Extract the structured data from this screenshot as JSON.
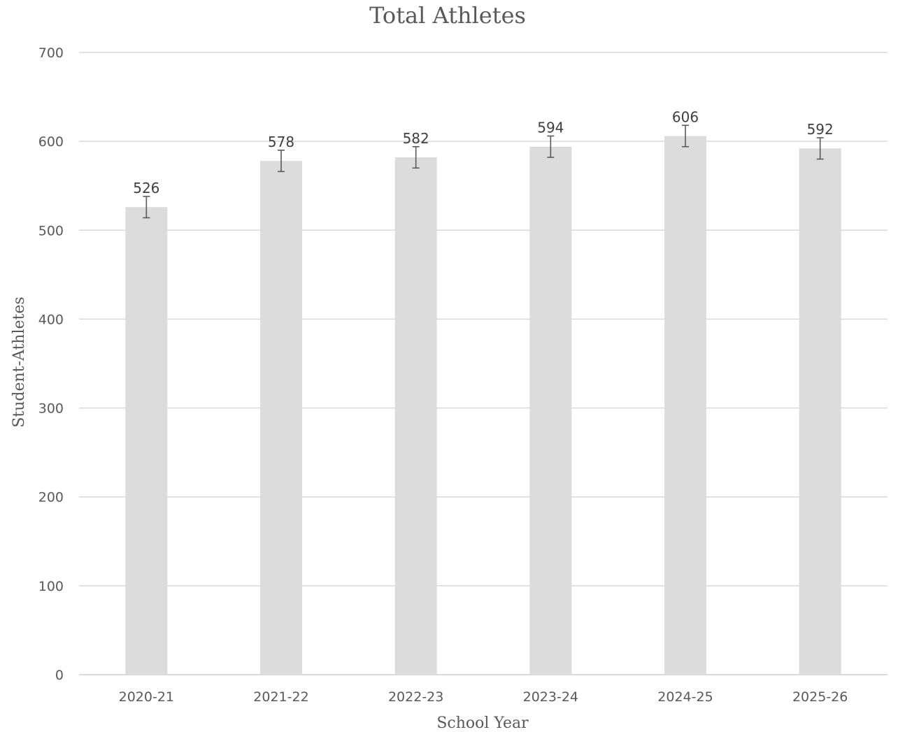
{
  "chart_data": {
    "type": "bar",
    "title": "Total Athletes",
    "xlabel": "School Year",
    "ylabel": "Student-Athletes",
    "categories": [
      "2020-21",
      "2021-22",
      "2022-23",
      "2023-24",
      "2024-25",
      "2025-26"
    ],
    "values": [
      526,
      578,
      582,
      594,
      606,
      592
    ],
    "data_labels": [
      "526",
      "578",
      "582",
      "594",
      "606",
      "592"
    ],
    "error": 12,
    "ylim": [
      0,
      700
    ],
    "yticks": [
      0,
      100,
      200,
      300,
      400,
      500,
      600,
      700
    ],
    "ytick_labels": [
      "0",
      "100",
      "200",
      "300",
      "400",
      "500",
      "600",
      "700"
    ],
    "grid": true,
    "legend": "none",
    "colors": {
      "bar": "#dcdcdc",
      "gridline": "#d9d9d9",
      "text": "#595959",
      "error_bar": "#595959"
    }
  }
}
